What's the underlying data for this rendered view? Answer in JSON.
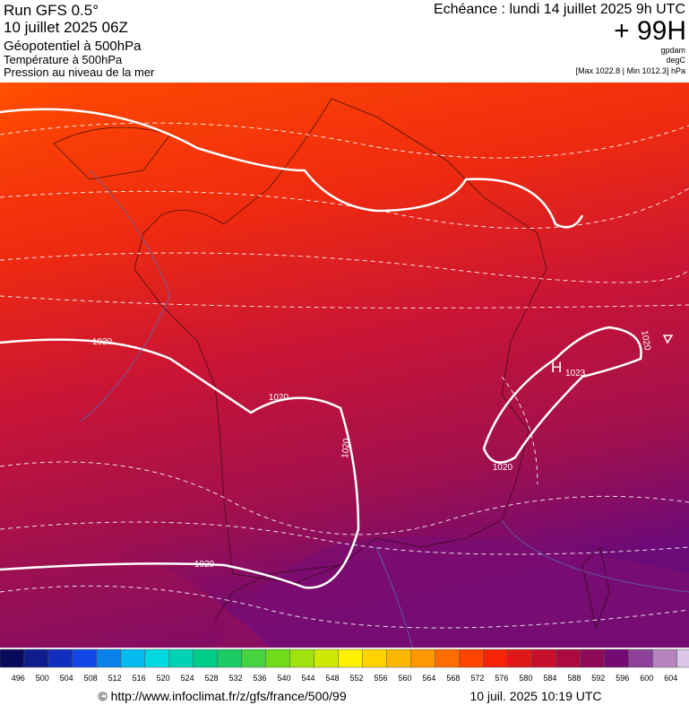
{
  "header": {
    "run": "Run GFS 0.5°",
    "date": "10 juillet 2025 06Z",
    "field": "Géopotentiel à 500hPa",
    "temperature": "Température à 500hPa",
    "pressure": "Pression au niveau de la mer",
    "forecast": "Echéance : lundi 14 juillet 2025 9h UTC",
    "lead": "+ 99H",
    "units": [
      "gpdam",
      "degC"
    ],
    "range": "[Max 1022.8 | Min 1012.3] hPa"
  },
  "map": {
    "isobar_labels": [
      "1020",
      "1020",
      "1020",
      "1020",
      "1020",
      "1020"
    ],
    "high": {
      "symbol": "H",
      "value": "1023"
    }
  },
  "legend": {
    "labels": [
      496,
      500,
      504,
      508,
      512,
      516,
      520,
      524,
      528,
      532,
      536,
      540,
      544,
      548,
      552,
      556,
      560,
      564,
      568,
      572,
      576,
      580,
      584,
      588,
      592,
      596,
      600,
      604
    ]
  },
  "footer": {
    "url": "© http://www.infoclimat.fr/z/gfs/france/500/99",
    "timestamp": "10 juil. 2025 10:19 UTC"
  }
}
